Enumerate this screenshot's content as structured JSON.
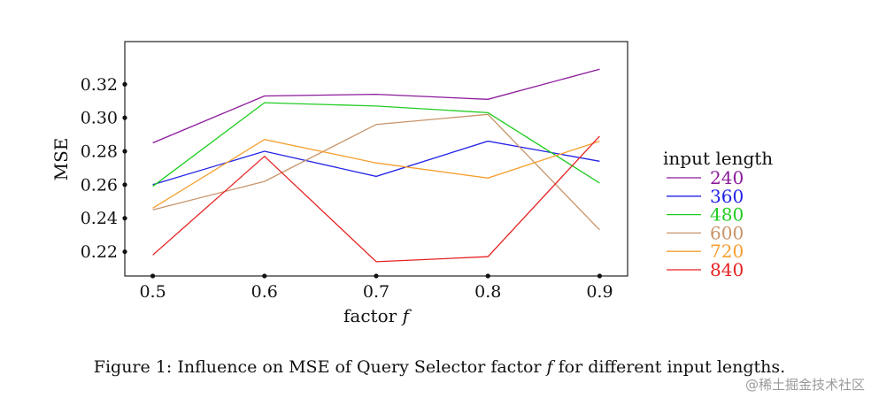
{
  "chart_data": {
    "type": "line",
    "xlabel": "factor",
    "xlabel_var": "f",
    "ylabel": "MSE",
    "x": [
      0.5,
      0.6,
      0.7,
      0.8,
      0.9
    ],
    "x_tick_labels": [
      "0.5",
      "0.6",
      "0.7",
      "0.8",
      "0.9"
    ],
    "y_ticks": [
      0.22,
      0.24,
      0.26,
      0.28,
      0.3,
      0.32
    ],
    "y_tick_labels": [
      "0.22",
      "0.24",
      "0.26",
      "0.28",
      "0.30",
      "0.32"
    ],
    "xlim": [
      0.475,
      0.925
    ],
    "ylim": [
      0.2055,
      0.3455
    ],
    "grid": false,
    "legend": {
      "title": "input length",
      "placement": "right"
    },
    "series": [
      {
        "name": "240",
        "color": "#8B1A9A",
        "values": [
          0.285,
          0.313,
          0.314,
          0.311,
          0.329
        ]
      },
      {
        "name": "360",
        "color": "#2222E6",
        "values": [
          0.26,
          0.28,
          0.265,
          0.286,
          0.274
        ]
      },
      {
        "name": "480",
        "color": "#22CC22",
        "values": [
          0.259,
          0.309,
          0.307,
          0.303,
          0.261
        ]
      },
      {
        "name": "600",
        "color": "#C8946A",
        "values": [
          0.245,
          0.262,
          0.296,
          0.302,
          0.233
        ]
      },
      {
        "name": "720",
        "color": "#F5A030",
        "values": [
          0.246,
          0.287,
          0.273,
          0.264,
          0.286
        ]
      },
      {
        "name": "840",
        "color": "#E62222",
        "values": [
          0.218,
          0.277,
          0.214,
          0.217,
          0.289
        ]
      }
    ]
  },
  "caption": {
    "prefix": "Figure 1:  Influence on MSE of Query Selector factor",
    "var": "f",
    "suffix": "for different input lengths."
  },
  "watermark": "@稀土掘金技术社区"
}
